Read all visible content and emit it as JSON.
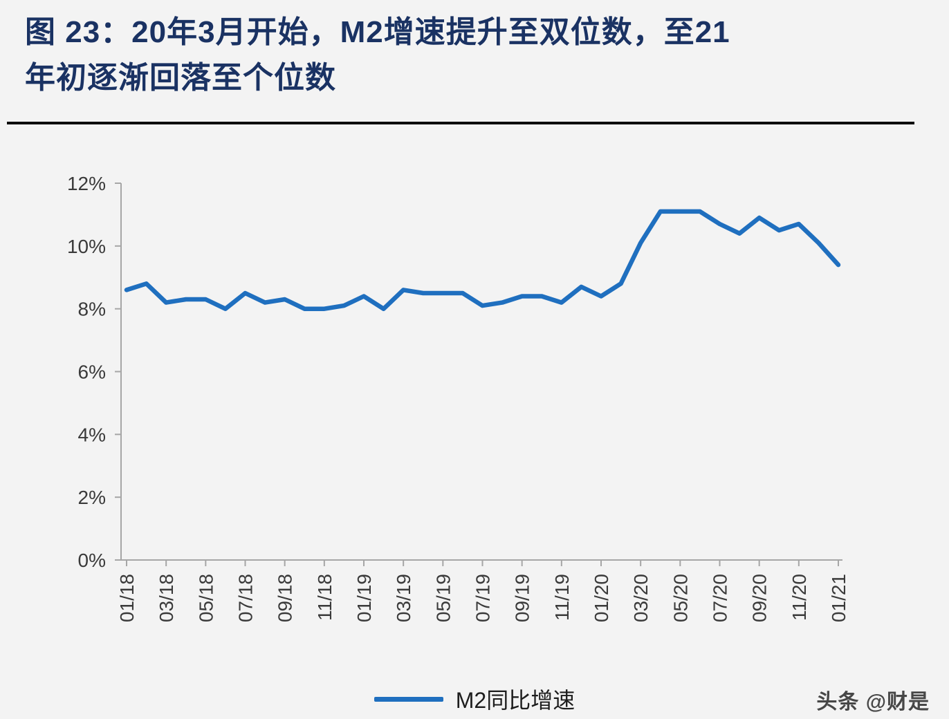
{
  "page": {
    "title_line1": "图 23：20年3月开始，M2增速提升至双位数，至21",
    "title_line2": "年初逐渐回落至个位数",
    "watermark": "头条 @财是"
  },
  "colors": {
    "background": "#f3f3f3",
    "title": "#1a3263",
    "axis": "#a6a6a6",
    "line": "#1f6fbf"
  },
  "chart_data": {
    "type": "line",
    "title": "20年3月开始，M2增速提升至双位数，至21年初逐渐回落至个位数",
    "xlabel": "",
    "ylabel": "",
    "ylim": [
      0,
      12
    ],
    "y_tick_labels": [
      "0%",
      "2%",
      "4%",
      "6%",
      "8%",
      "10%",
      "12%"
    ],
    "x_tick_every": 2,
    "grid": false,
    "legend_position": "bottom",
    "categories": [
      "01/18",
      "02/18",
      "03/18",
      "04/18",
      "05/18",
      "06/18",
      "07/18",
      "08/18",
      "09/18",
      "10/18",
      "11/18",
      "12/18",
      "01/19",
      "02/19",
      "03/19",
      "04/19",
      "05/19",
      "06/19",
      "07/19",
      "08/19",
      "09/19",
      "10/19",
      "11/19",
      "12/19",
      "01/20",
      "02/20",
      "03/20",
      "04/20",
      "05/20",
      "06/20",
      "07/20",
      "08/20",
      "09/20",
      "10/20",
      "11/20",
      "12/20",
      "01/21"
    ],
    "series": [
      {
        "name": "M2同比增速",
        "color": "#1f6fbf",
        "values": [
          8.6,
          8.8,
          8.2,
          8.3,
          8.3,
          8.0,
          8.5,
          8.2,
          8.3,
          8.0,
          8.0,
          8.1,
          8.4,
          8.0,
          8.6,
          8.5,
          8.5,
          8.5,
          8.1,
          8.2,
          8.4,
          8.4,
          8.2,
          8.7,
          8.4,
          8.8,
          10.1,
          11.1,
          11.1,
          11.1,
          10.7,
          10.4,
          10.9,
          10.5,
          10.7,
          10.1,
          9.4
        ]
      }
    ]
  }
}
